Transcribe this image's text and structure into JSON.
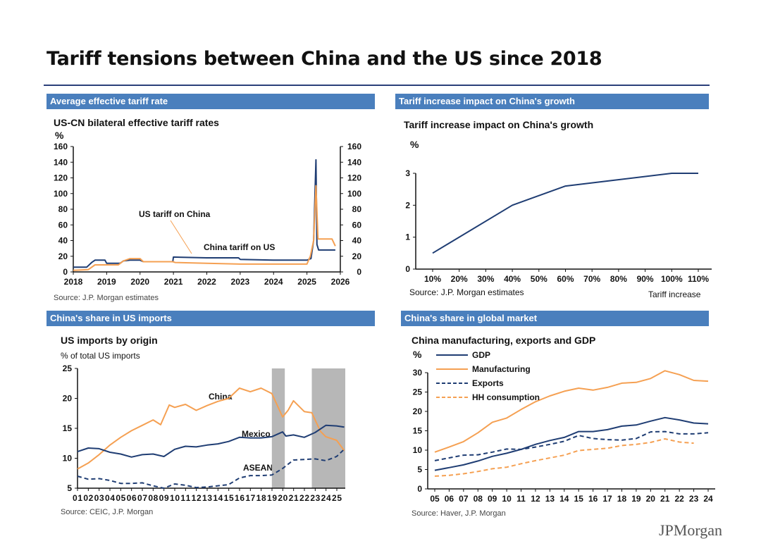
{
  "title": "Tariff tensions between China and the US since 2018",
  "logo": "JPMorgan",
  "colors": {
    "navy": "#1f3d73",
    "orange": "#f5a052",
    "header": "#4a7fbd",
    "shade": "#b7b7b7"
  },
  "panels": [
    {
      "header": "Average effective tariff rate",
      "chart_title": "US-CN bilateral effective tariff rates",
      "unit": "%",
      "source": "Source: J.P. Morgan estimates"
    },
    {
      "header": "Tariff increase impact on China's growth",
      "chart_title": "Tariff increase impact on China's growth",
      "unit": "%",
      "source": "Source: J.P. Morgan estimates",
      "xlabel": "Tariff increase"
    },
    {
      "header": "China's share in US imports",
      "chart_title": "US imports by origin",
      "unit": "% of total US imports",
      "source": "Source: CEIC, J.P. Morgan"
    },
    {
      "header": "China's share in global market",
      "chart_title": "China manufacturing, exports and GDP",
      "unit": "%",
      "source": "Source: Haver, J.P. Morgan"
    }
  ],
  "chart_data": [
    {
      "type": "line",
      "title": "US-CN bilateral effective tariff rates",
      "ylabel": "%",
      "xlim": [
        2018,
        2026
      ],
      "ylim": [
        0,
        160
      ],
      "xticks": [
        "2018",
        "2019",
        "2020",
        "2021",
        "2022",
        "2023",
        "2024",
        "2025",
        "2026"
      ],
      "yticks": [
        0,
        20,
        40,
        60,
        80,
        100,
        120,
        140,
        160
      ],
      "secondary_axis": true,
      "annotations": [
        "US tariff on China",
        "China tariff on US"
      ],
      "series": [
        {
          "name": "US tariff on China",
          "color": "#1f3d73",
          "dash": false,
          "x": [
            2018,
            2018.4,
            2018.55,
            2018.65,
            2018.95,
            2019.0,
            2019.4,
            2019.5,
            2019.7,
            2020.0,
            2020.1,
            2020.98,
            2021.0,
            2022.0,
            2022.95,
            2023.0,
            2024.0,
            2025.0,
            2025.12,
            2025.2,
            2025.27,
            2025.3,
            2025.35,
            2025.85
          ],
          "y": [
            6,
            6,
            12,
            15,
            15,
            11,
            11,
            14,
            15,
            15,
            13,
            13,
            19,
            18,
            18,
            16,
            15,
            15,
            17,
            40,
            143,
            35,
            28,
            28
          ]
        },
        {
          "name": "China tariff on US",
          "color": "#f5a052",
          "dash": false,
          "x": [
            2018,
            2018.45,
            2018.65,
            2019.35,
            2019.5,
            2019.7,
            2020.0,
            2020.1,
            2020.98,
            2021.05,
            2022.0,
            2023.0,
            2024.0,
            2025.0,
            2025.1,
            2025.2,
            2025.27,
            2025.33,
            2025.75,
            2025.85
          ],
          "y": [
            2,
            3,
            9,
            9,
            14,
            17,
            17,
            13,
            13,
            12,
            11,
            10,
            10,
            10,
            20,
            40,
            110,
            42,
            42,
            33
          ]
        }
      ]
    },
    {
      "type": "line",
      "title": "Tariff increase impact on China's growth",
      "ylabel": "%",
      "xlabel": "Tariff increase",
      "xlim": [
        10,
        110
      ],
      "ylim": [
        0,
        3
      ],
      "xticks": [
        "10%",
        "20%",
        "30%",
        "40%",
        "50%",
        "60%",
        "70%",
        "80%",
        "90%",
        "100%",
        "110%"
      ],
      "yticks": [
        0,
        1,
        2,
        3
      ],
      "series": [
        {
          "color": "#1f3d73",
          "dash": false,
          "x": [
            10,
            40,
            60,
            100,
            110
          ],
          "y": [
            0.5,
            2.0,
            2.6,
            3.0,
            3.0
          ]
        }
      ]
    },
    {
      "type": "line",
      "title": "US imports by origin",
      "ylabel": "% of total US imports",
      "xlim": [
        2001,
        2025.8
      ],
      "ylim": [
        5,
        25
      ],
      "xticks": [
        "01",
        "02",
        "03",
        "04",
        "05",
        "06",
        "07",
        "08",
        "09",
        "10",
        "11",
        "12",
        "13",
        "14",
        "15",
        "16",
        "17",
        "18",
        "19",
        "20",
        "21",
        "22",
        "23",
        "24",
        "25"
      ],
      "yticks": [
        5,
        10,
        15,
        20,
        25
      ],
      "shaded": [
        [
          2019,
          2020.2
        ],
        [
          2022.7,
          2025.8
        ]
      ],
      "series": [
        {
          "name": "China",
          "color": "#f5a052",
          "dash": false,
          "x": [
            2001,
            2002,
            2003,
            2004,
            2005,
            2006,
            2007,
            2008,
            2008.7,
            2009.5,
            2010,
            2011,
            2012,
            2013,
            2014,
            2015,
            2016,
            2017,
            2018,
            2019,
            2020,
            2020.5,
            2021,
            2022,
            2022.7,
            2023.5,
            2024,
            2025,
            2025.7
          ],
          "y": [
            8.2,
            9.2,
            10.6,
            12.2,
            13.5,
            14.6,
            15.5,
            16.4,
            15.6,
            18.9,
            18.5,
            19.0,
            18.0,
            18.8,
            19.5,
            20.0,
            21.7,
            21.1,
            21.7,
            20.8,
            16.9,
            18.0,
            19.6,
            17.8,
            17.6,
            14.5,
            13.6,
            13.0,
            11.3
          ]
        },
        {
          "name": "Mexico",
          "color": "#1f3d73",
          "dash": false,
          "x": [
            2001,
            2002,
            2003,
            2004,
            2005,
            2006,
            2007,
            2008,
            2009,
            2010,
            2011,
            2012,
            2013,
            2014,
            2015,
            2016,
            2017,
            2018,
            2019,
            2020,
            2020.3,
            2021,
            2022,
            2023,
            2024,
            2025,
            2025.7
          ],
          "y": [
            11.1,
            11.7,
            11.6,
            11.0,
            10.7,
            10.2,
            10.6,
            10.7,
            10.3,
            11.5,
            12.0,
            11.9,
            12.2,
            12.4,
            12.8,
            13.5,
            13.4,
            13.4,
            13.6,
            14.4,
            13.7,
            13.9,
            13.5,
            14.3,
            15.5,
            15.4,
            15.2
          ]
        },
        {
          "name": "ASEAN",
          "color": "#1f3d73",
          "dash": true,
          "x": [
            2001,
            2002,
            2003,
            2004,
            2005,
            2006,
            2007,
            2008,
            2009,
            2010,
            2011,
            2012,
            2013,
            2014,
            2015,
            2016,
            2017,
            2018,
            2019,
            2020,
            2021,
            2022,
            2023,
            2024,
            2025,
            2025.7
          ],
          "y": [
            7.0,
            6.5,
            6.6,
            6.3,
            5.8,
            5.8,
            5.9,
            5.4,
            5.0,
            5.7,
            5.5,
            5.1,
            5.2,
            5.4,
            5.6,
            6.7,
            7.1,
            7.1,
            7.2,
            8.3,
            9.7,
            9.8,
            9.9,
            9.6,
            10.3,
            11.5
          ]
        }
      ]
    },
    {
      "type": "line",
      "title": "China manufacturing, exports and GDP",
      "ylabel": "%",
      "xlim": [
        2005,
        2024
      ],
      "ylim": [
        0,
        30
      ],
      "xticks": [
        "05",
        "06",
        "07",
        "08",
        "09",
        "10",
        "11",
        "12",
        "13",
        "14",
        "15",
        "16",
        "17",
        "18",
        "19",
        "20",
        "21",
        "22",
        "23",
        "24"
      ],
      "yticks": [
        0,
        5,
        10,
        15,
        20,
        25,
        30
      ],
      "legend": "top-left",
      "series": [
        {
          "name": "GDP",
          "color": "#1f3d73",
          "dash": false,
          "x": [
            2005,
            2006,
            2007,
            2008,
            2009,
            2010,
            2011,
            2012,
            2013,
            2014,
            2015,
            2016,
            2017,
            2018,
            2019,
            2020,
            2021,
            2022,
            2023,
            2024
          ],
          "y": [
            4.8,
            5.5,
            6.2,
            7.2,
            8.4,
            9.2,
            10.2,
            11.5,
            12.5,
            13.3,
            14.8,
            14.8,
            15.3,
            16.2,
            16.5,
            17.5,
            18.4,
            17.8,
            17.0,
            16.8
          ]
        },
        {
          "name": "Manufacturing",
          "color": "#f5a052",
          "dash": false,
          "x": [
            2005,
            2006,
            2007,
            2008,
            2009,
            2010,
            2011,
            2012,
            2013,
            2014,
            2015,
            2016,
            2017,
            2018,
            2019,
            2020,
            2021,
            2022,
            2023,
            2024
          ],
          "y": [
            9.5,
            10.8,
            12.2,
            14.5,
            17.2,
            18.3,
            20.5,
            22.5,
            24.0,
            25.2,
            26.0,
            25.5,
            26.2,
            27.3,
            27.5,
            28.5,
            30.5,
            29.5,
            28.0,
            27.8
          ]
        },
        {
          "name": "Exports",
          "color": "#1f3d73",
          "dash": true,
          "x": [
            2005,
            2006,
            2007,
            2008,
            2009,
            2010,
            2011,
            2012,
            2013,
            2014,
            2015,
            2016,
            2017,
            2018,
            2019,
            2020,
            2021,
            2022,
            2023,
            2024
          ],
          "y": [
            7.3,
            8.0,
            8.7,
            8.8,
            9.5,
            10.3,
            10.2,
            10.8,
            11.5,
            12.3,
            13.8,
            13.0,
            12.7,
            12.6,
            13.0,
            14.7,
            14.8,
            14.2,
            14.2,
            14.5
          ]
        },
        {
          "name": "HH consumption",
          "color": "#f5a052",
          "dash": true,
          "x": [
            2005,
            2006,
            2007,
            2008,
            2009,
            2010,
            2011,
            2012,
            2013,
            2014,
            2015,
            2016,
            2017,
            2018,
            2019,
            2020,
            2021,
            2022,
            2023
          ],
          "y": [
            3.3,
            3.5,
            3.9,
            4.5,
            5.2,
            5.6,
            6.5,
            7.3,
            8.0,
            8.7,
            9.9,
            10.2,
            10.5,
            11.2,
            11.5,
            12.0,
            12.9,
            12.1,
            11.8
          ]
        }
      ]
    }
  ]
}
